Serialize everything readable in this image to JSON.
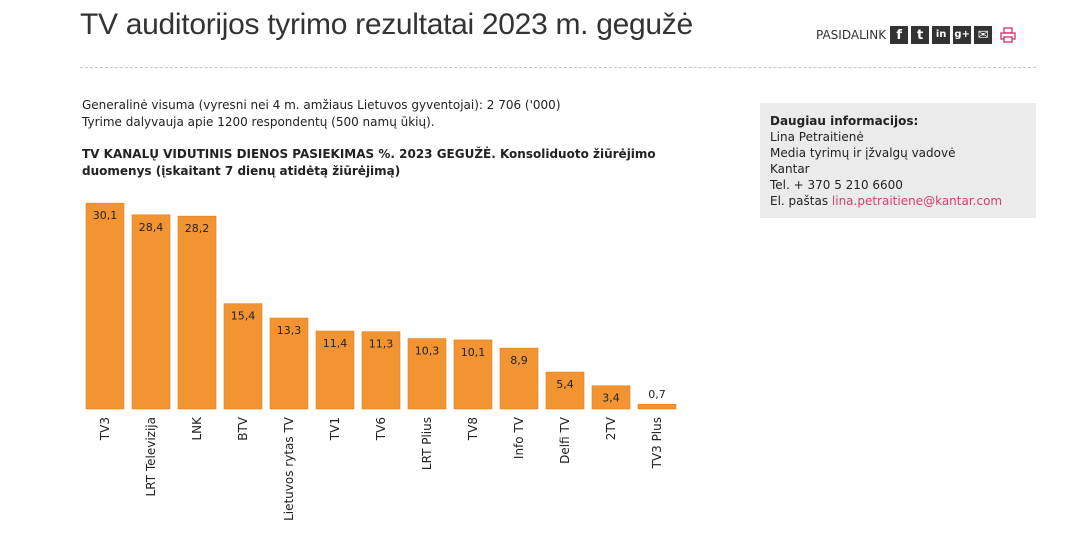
{
  "header": {
    "title": "TV auditorijos tyrimo rezultatai 2023 m. gegužė",
    "share_label": "PASIDALINK",
    "share_icons": [
      {
        "name": "facebook-icon",
        "glyph": "f"
      },
      {
        "name": "twitter-icon",
        "glyph": "t"
      },
      {
        "name": "linkedin-icon",
        "glyph": "in"
      },
      {
        "name": "googleplus-icon",
        "glyph": "g+"
      },
      {
        "name": "email-icon",
        "glyph": "✉"
      }
    ],
    "print_icon": "print-icon"
  },
  "intro": {
    "line1": "Generalinė visuma (vyresni nei 4 m. amžiaus Lietuvos gyventojai): 2 706 ('000)",
    "line2": "Tyrime dalyvauja apie 1200 respondentų (500 namų ūkių)."
  },
  "info": {
    "title": "Daugiau informacijos:",
    "name": "Lina Petraitienė",
    "position": "Media tyrimų ir įžvalgų vadovė",
    "company": "Kantar",
    "phone": "Tel. + 370 5 210 6600",
    "email_label": "El. paštas",
    "email": "lina.petraitiene@kantar.com"
  },
  "colors": {
    "bar": "#f29432",
    "bar_stroke": "#e07f1c",
    "link": "#d6406e",
    "info_bg": "#ebebeb"
  },
  "chart_data": {
    "type": "bar",
    "title": "TV KANALŲ VIDUTINIS DIENOS PASIEKIMAS %. 2023 GEGUŽĖ. Konsoliduoto žiūrėjimo duomenys (įskaitant 7 dienų atidėtą žiūrėjimą)",
    "categories": [
      "TV3",
      "LRT Televizija",
      "LNK",
      "BTV",
      "Lietuvos rytas TV",
      "TV1",
      "TV6",
      "LRT Plius",
      "TV8",
      "Info TV",
      "Delfi TV",
      "2TV",
      "TV3 Plus"
    ],
    "values": [
      30.1,
      28.4,
      28.2,
      15.4,
      13.3,
      11.4,
      11.3,
      10.3,
      10.1,
      8.9,
      5.4,
      3.4,
      0.7
    ],
    "labels": [
      "30,1",
      "28,4",
      "28,2",
      "15,4",
      "13,3",
      "11,4",
      "11,3",
      "10,3",
      "10,1",
      "8,9",
      "5,4",
      "3,4",
      "0,7"
    ],
    "xlabel": "",
    "ylabel": "",
    "ylim": [
      0,
      31
    ],
    "grid": false,
    "legend": "none"
  }
}
